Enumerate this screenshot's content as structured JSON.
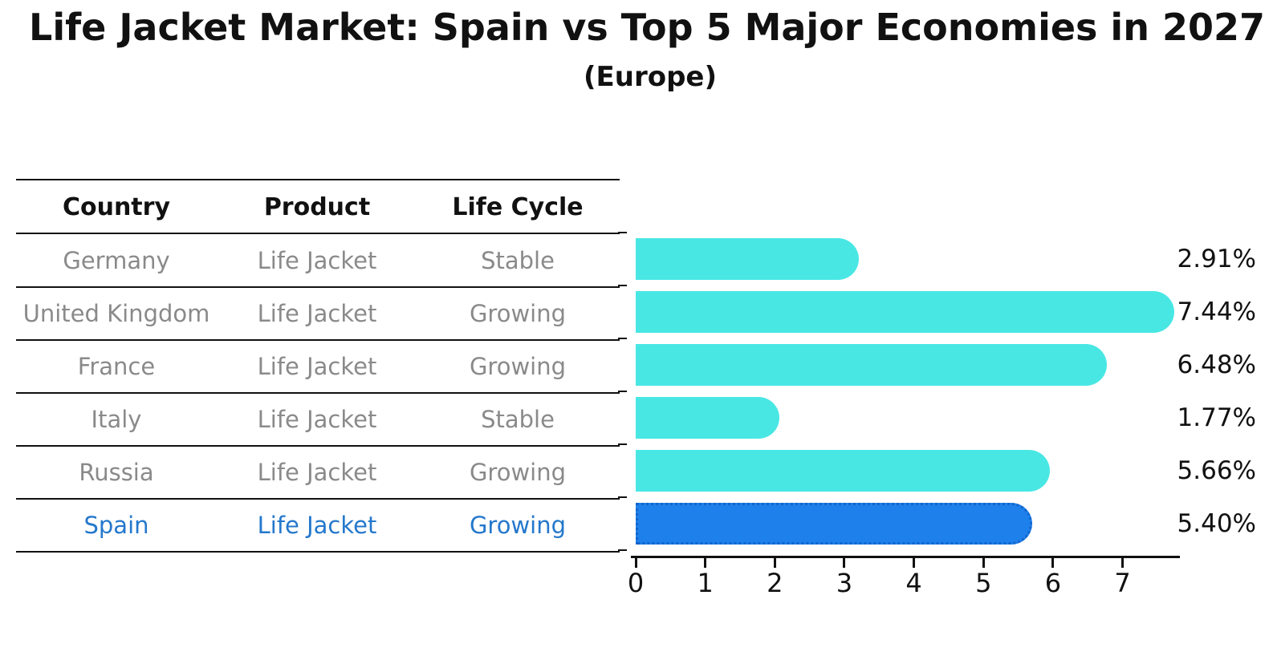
{
  "title": "Life Jacket Market: Spain vs Top 5 Major Economies in 2027",
  "subtitle": "(Europe)",
  "table": {
    "headers": [
      "Country",
      "Product",
      "Life Cycle"
    ],
    "rows": [
      {
        "country": "Germany",
        "product": "Life Jacket",
        "life_cycle": "Stable",
        "highlight": false
      },
      {
        "country": "United Kingdom",
        "product": "Life Jacket",
        "life_cycle": "Growing",
        "highlight": false
      },
      {
        "country": "France",
        "product": "Life Jacket",
        "life_cycle": "Growing",
        "highlight": false
      },
      {
        "country": "Italy",
        "product": "Life Jacket",
        "life_cycle": "Stable",
        "highlight": false
      },
      {
        "country": "Russia",
        "product": "Life Jacket",
        "life_cycle": "Growing",
        "highlight": false
      },
      {
        "country": "Spain",
        "product": "Life Jacket",
        "life_cycle": "Growing",
        "highlight": true
      }
    ]
  },
  "chart_data": {
    "type": "bar",
    "orientation": "horizontal",
    "categories": [
      "Germany",
      "United Kingdom",
      "France",
      "Italy",
      "Russia",
      "Spain"
    ],
    "values": [
      2.91,
      7.44,
      6.48,
      1.77,
      5.66,
      5.4
    ],
    "bar_labels": [
      "2.91%",
      "7.44%",
      "6.48%",
      "1.77%",
      "5.66%",
      "5.40%"
    ],
    "x_ticks": [
      "0",
      "1",
      "2",
      "3",
      "4",
      "5",
      "6",
      "7"
    ],
    "xlim": [
      0,
      7.8
    ],
    "grid": false,
    "legend": "none",
    "highlight_index": 5,
    "title": "Life Jacket Market: Spain vs Top 5 Major Economies in 2027",
    "subtitle": "(Europe)"
  },
  "colors": {
    "bar": "#49E7E4",
    "highlight_bar": "#1E80EB",
    "highlight_border": "#1365CB",
    "row_text": "#8a8a8a",
    "highlight_text": "#2478CC",
    "axis": "#111111"
  }
}
